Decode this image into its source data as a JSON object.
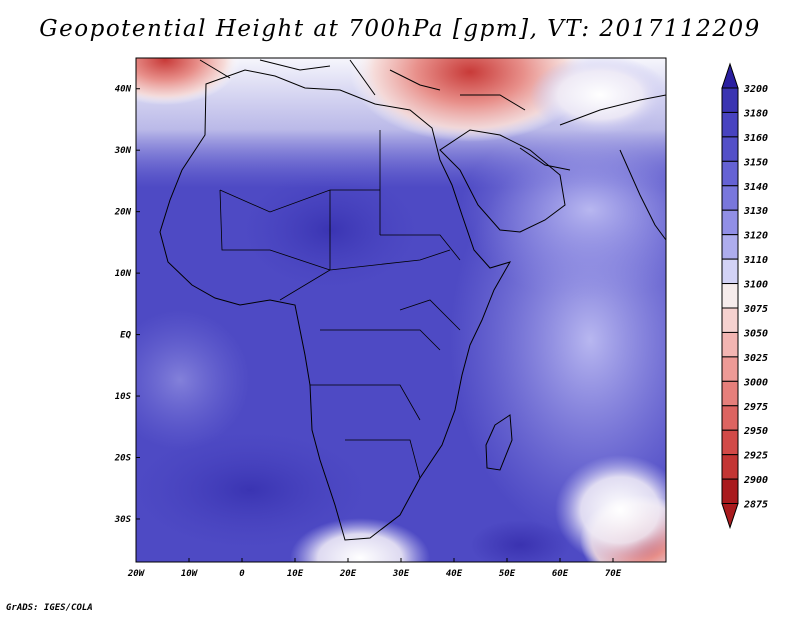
{
  "title": "Geopotential Height at 700hPa [gpm], VT: 2017112209",
  "footer": "GrADS: IGES/COLA",
  "map": {
    "region": "Africa and Arabian Peninsula",
    "lon_range": [
      -20,
      80
    ],
    "lat_range": [
      -37,
      45
    ],
    "lon_labels": [
      "20W",
      "10W",
      "0",
      "10E",
      "20E",
      "30E",
      "40E",
      "50E",
      "60E",
      "70E"
    ],
    "lat_labels": [
      "40N",
      "30N",
      "20N",
      "10N",
      "EQ",
      "10S",
      "20S",
      "30S"
    ]
  },
  "colorbar": {
    "levels": [
      "3200",
      "3180",
      "3160",
      "3150",
      "3140",
      "3130",
      "3120",
      "3110",
      "3100",
      "3075",
      "3050",
      "3025",
      "3000",
      "2975",
      "2950",
      "2925",
      "2900",
      "2875"
    ],
    "colors": [
      "#2a1fa0",
      "#3a34b2",
      "#4843c0",
      "#5450c8",
      "#6562d4",
      "#7977dc",
      "#918fe6",
      "#aeadee",
      "#d3d3f6",
      "#f6ecec",
      "#f6d2d0",
      "#f3b5b2",
      "#ee9a96",
      "#e67f7b",
      "#dd6461",
      "#d24a48",
      "#c33534",
      "#a91b1e"
    ]
  }
}
